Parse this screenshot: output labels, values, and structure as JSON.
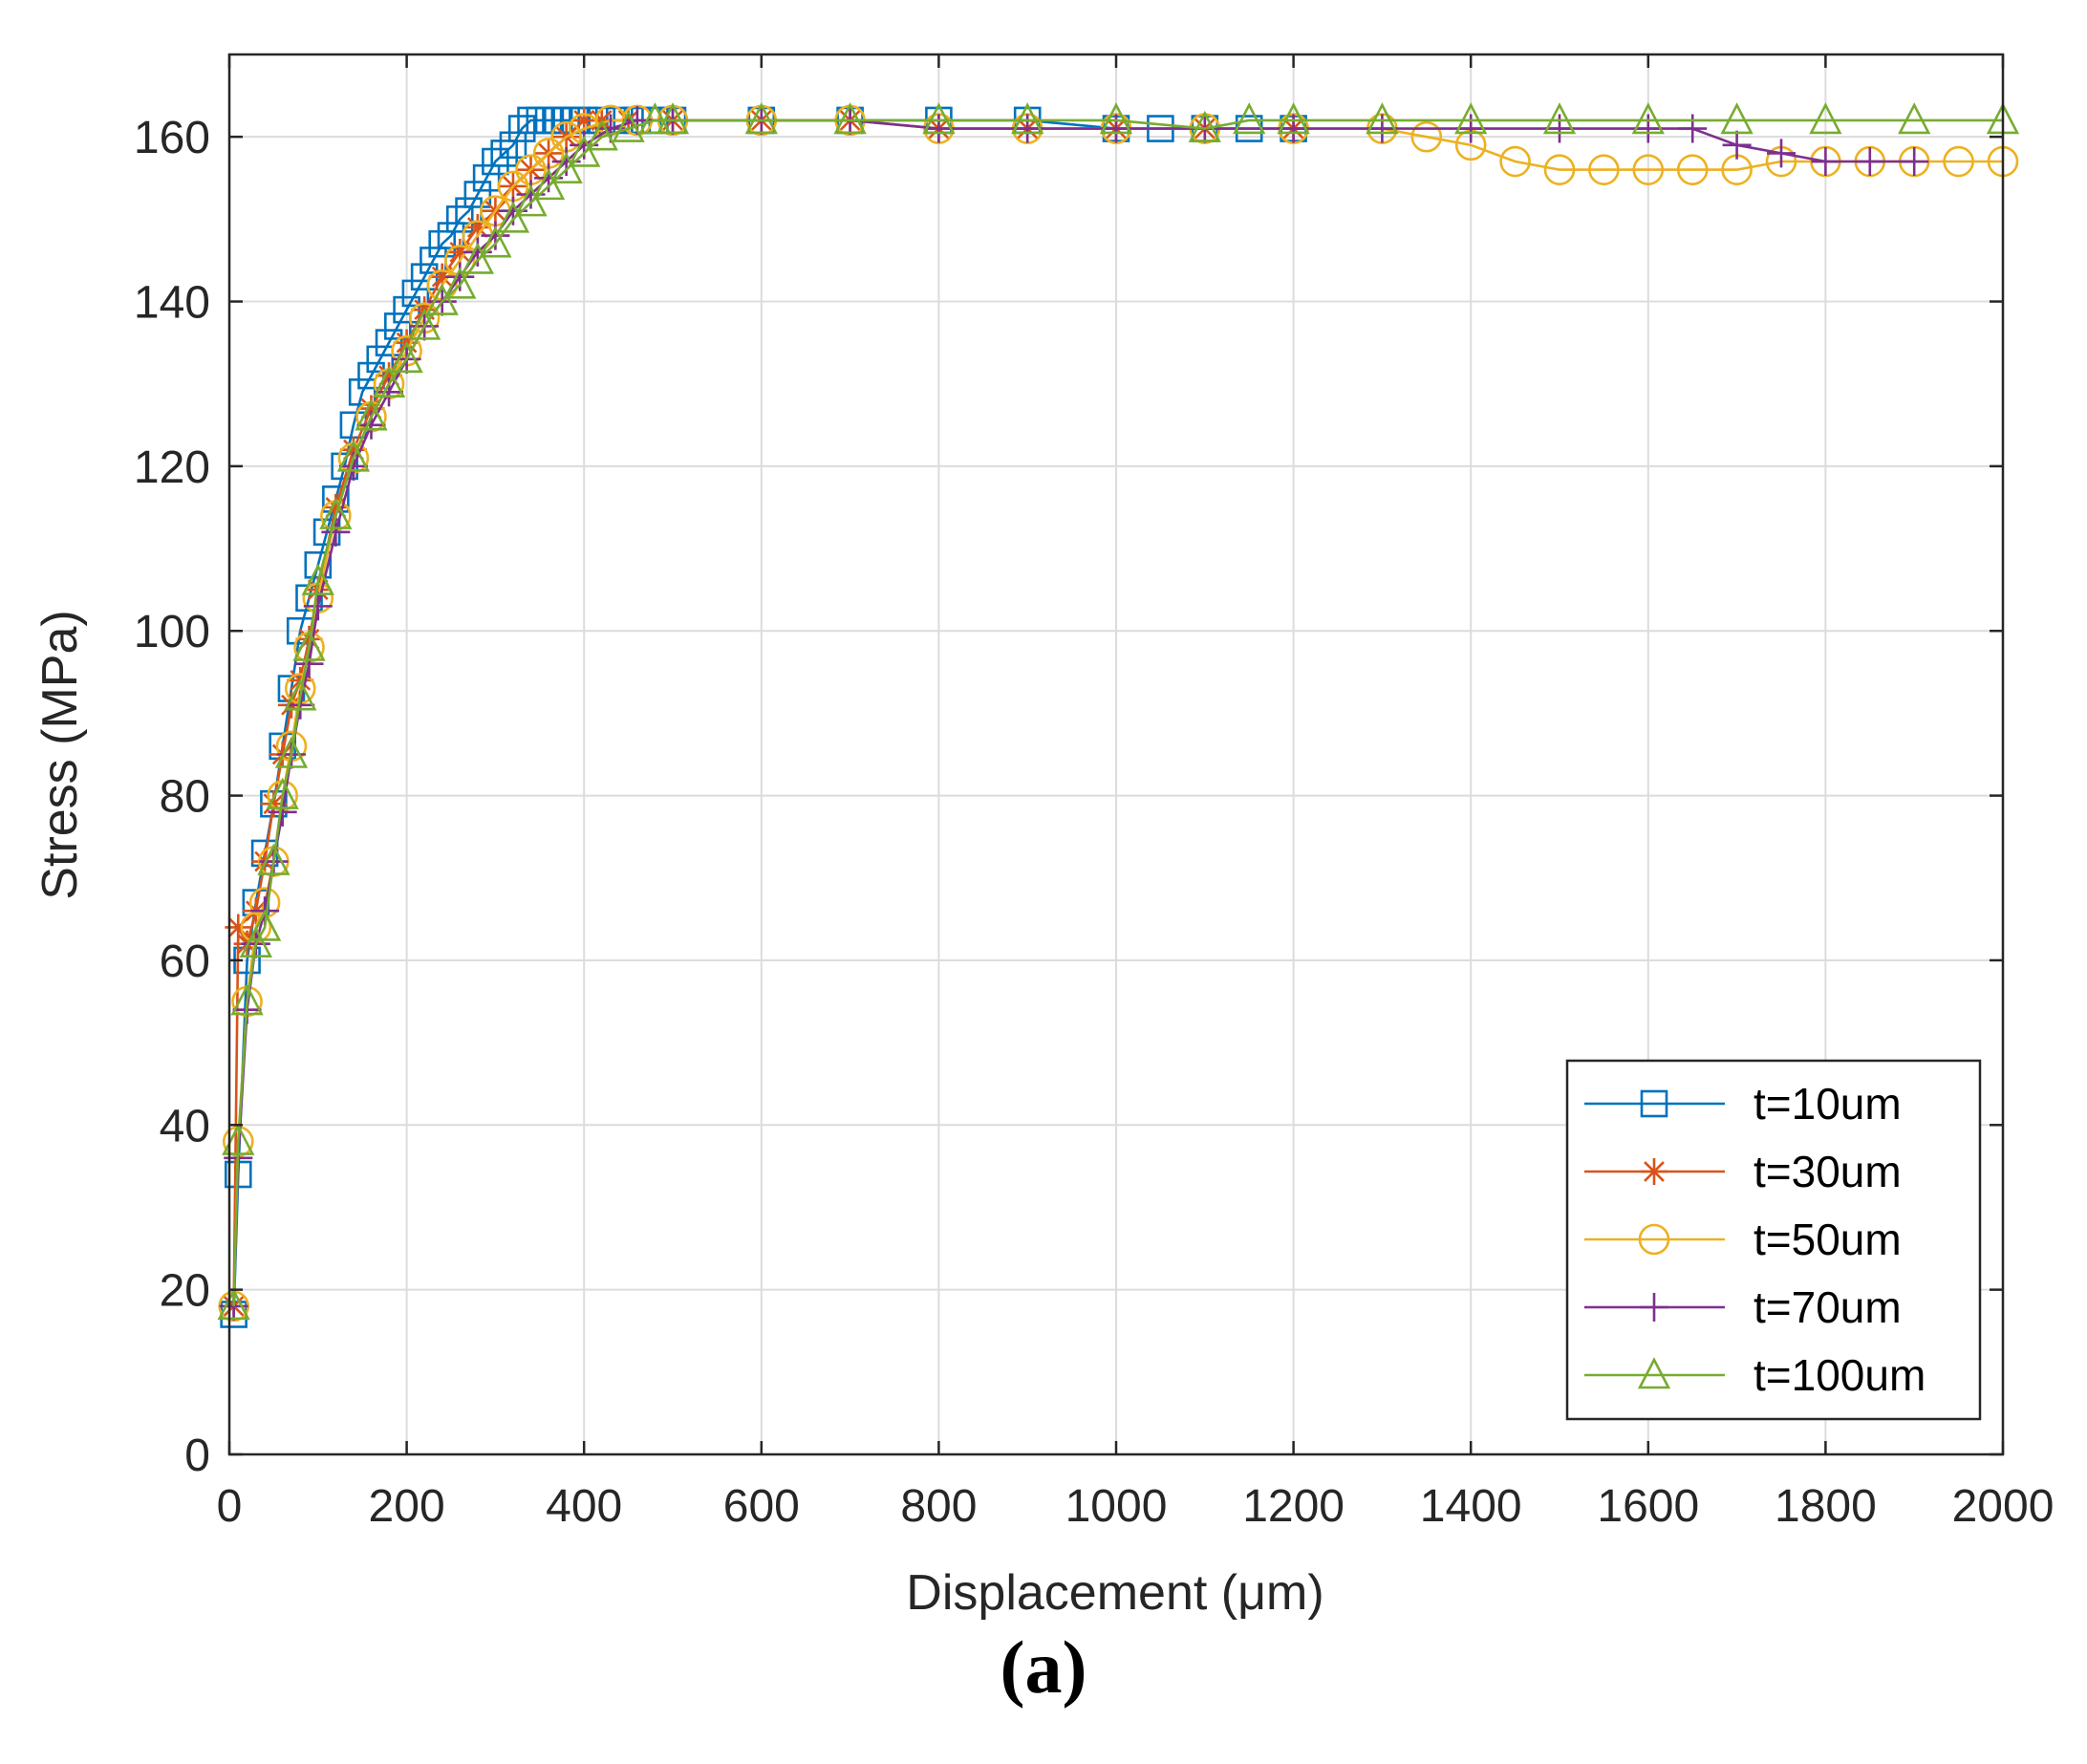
{
  "caption": "(a)",
  "chart_data": {
    "type": "line",
    "title": "",
    "xlabel": "Displacement (μm)",
    "ylabel": "Stress (MPa)",
    "xlim": [
      0,
      2000
    ],
    "ylim": [
      0,
      170
    ],
    "xticks": [
      0,
      200,
      400,
      600,
      800,
      1000,
      1200,
      1400,
      1600,
      1800,
      2000
    ],
    "yticks": [
      0,
      20,
      40,
      60,
      80,
      100,
      120,
      140,
      160
    ],
    "grid": true,
    "legend_position": "bottom-right",
    "series": [
      {
        "name": "t=10um",
        "color": "#0072BD",
        "marker": "square",
        "x": [
          5,
          10,
          20,
          30,
          40,
          50,
          60,
          70,
          80,
          90,
          100,
          110,
          120,
          130,
          140,
          150,
          160,
          170,
          180,
          190,
          200,
          210,
          220,
          230,
          240,
          250,
          260,
          270,
          280,
          290,
          300,
          310,
          320,
          330,
          340,
          350,
          360,
          370,
          380,
          390,
          400,
          420,
          440,
          460,
          480,
          500,
          600,
          700,
          800,
          900,
          1000,
          1050,
          1100,
          1150,
          1200
        ],
        "y": [
          17,
          34,
          60,
          67,
          73,
          79,
          86,
          93,
          100,
          104,
          108,
          112,
          116,
          120,
          125,
          129,
          131,
          133,
          135,
          137,
          139,
          141,
          143,
          145,
          147,
          148,
          150,
          151,
          153,
          155,
          157,
          158,
          159,
          161,
          162,
          162,
          162,
          162,
          162,
          162,
          162,
          162,
          162,
          162,
          162,
          162,
          162,
          162,
          162,
          162,
          161,
          161,
          161,
          161,
          161
        ]
      },
      {
        "name": "t=30um",
        "color": "#D95319",
        "marker": "asterisk",
        "x": [
          5,
          10,
          20,
          30,
          40,
          50,
          60,
          70,
          80,
          90,
          100,
          120,
          140,
          160,
          180,
          200,
          220,
          240,
          260,
          280,
          300,
          320,
          340,
          360,
          380,
          400,
          420,
          450,
          500,
          600,
          700,
          800,
          900,
          1000,
          1100,
          1200
        ],
        "y": [
          18,
          64,
          62,
          66,
          72,
          79,
          85,
          91,
          94,
          99,
          105,
          115,
          122,
          127,
          131,
          135,
          139,
          143,
          146,
          149,
          151,
          154,
          156,
          158,
          160,
          162,
          162,
          162,
          162,
          162,
          162,
          161,
          161,
          161,
          161,
          161
        ]
      },
      {
        "name": "t=50um",
        "color": "#EDB120",
        "marker": "circle",
        "x": [
          5,
          10,
          20,
          30,
          40,
          50,
          60,
          70,
          80,
          90,
          100,
          120,
          140,
          160,
          180,
          200,
          220,
          240,
          260,
          280,
          300,
          320,
          340,
          360,
          380,
          400,
          430,
          460,
          500,
          600,
          700,
          800,
          900,
          1000,
          1100,
          1200,
          1300,
          1350,
          1400,
          1450,
          1500,
          1550,
          1600,
          1650,
          1700,
          1750,
          1800,
          1850,
          1900,
          1950,
          2000
        ],
        "y": [
          18,
          38,
          55,
          64,
          67,
          72,
          80,
          86,
          93,
          98,
          104,
          114,
          121,
          126,
          130,
          134,
          138,
          142,
          145,
          148,
          151,
          154,
          156,
          158,
          160,
          161,
          162,
          162,
          162,
          162,
          162,
          161,
          161,
          161,
          161,
          161,
          161,
          160,
          159,
          157,
          156,
          156,
          156,
          156,
          156,
          157,
          157,
          157,
          157,
          157,
          157
        ]
      },
      {
        "name": "t=70um",
        "color": "#7E2F8E",
        "marker": "plus",
        "x": [
          5,
          10,
          20,
          30,
          40,
          50,
          60,
          70,
          80,
          90,
          100,
          120,
          140,
          160,
          180,
          200,
          220,
          240,
          260,
          280,
          300,
          320,
          340,
          360,
          380,
          400,
          430,
          460,
          500,
          600,
          700,
          800,
          900,
          1000,
          1100,
          1200,
          1300,
          1400,
          1500,
          1600,
          1650,
          1700,
          1750,
          1800,
          1850,
          1900
        ],
        "y": [
          18,
          36,
          54,
          62,
          66,
          72,
          78,
          85,
          91,
          96,
          103,
          112,
          120,
          125,
          129,
          133,
          137,
          140,
          143,
          146,
          148,
          151,
          153,
          155,
          157,
          159,
          161,
          162,
          162,
          162,
          162,
          161,
          161,
          161,
          161,
          161,
          161,
          161,
          161,
          161,
          161,
          159,
          158,
          157,
          157,
          157
        ]
      },
      {
        "name": "t=100um",
        "color": "#77AC30",
        "marker": "triangle",
        "x": [
          5,
          10,
          20,
          30,
          40,
          50,
          60,
          70,
          80,
          90,
          100,
          120,
          140,
          160,
          180,
          200,
          220,
          240,
          260,
          280,
          300,
          320,
          340,
          360,
          380,
          400,
          420,
          450,
          480,
          500,
          600,
          700,
          800,
          900,
          1000,
          1100,
          1150,
          1200,
          1300,
          1400,
          1500,
          1600,
          1700,
          1800,
          1900,
          2000
        ],
        "y": [
          18,
          38,
          55,
          62,
          64,
          72,
          80,
          85,
          92,
          98,
          106,
          114,
          121,
          126,
          130,
          133,
          137,
          140,
          142,
          145,
          147,
          150,
          152,
          154,
          156,
          158,
          160,
          161,
          162,
          162,
          162,
          162,
          162,
          162,
          162,
          161,
          162,
          162,
          162,
          162,
          162,
          162,
          162,
          162,
          162,
          162
        ]
      }
    ]
  }
}
